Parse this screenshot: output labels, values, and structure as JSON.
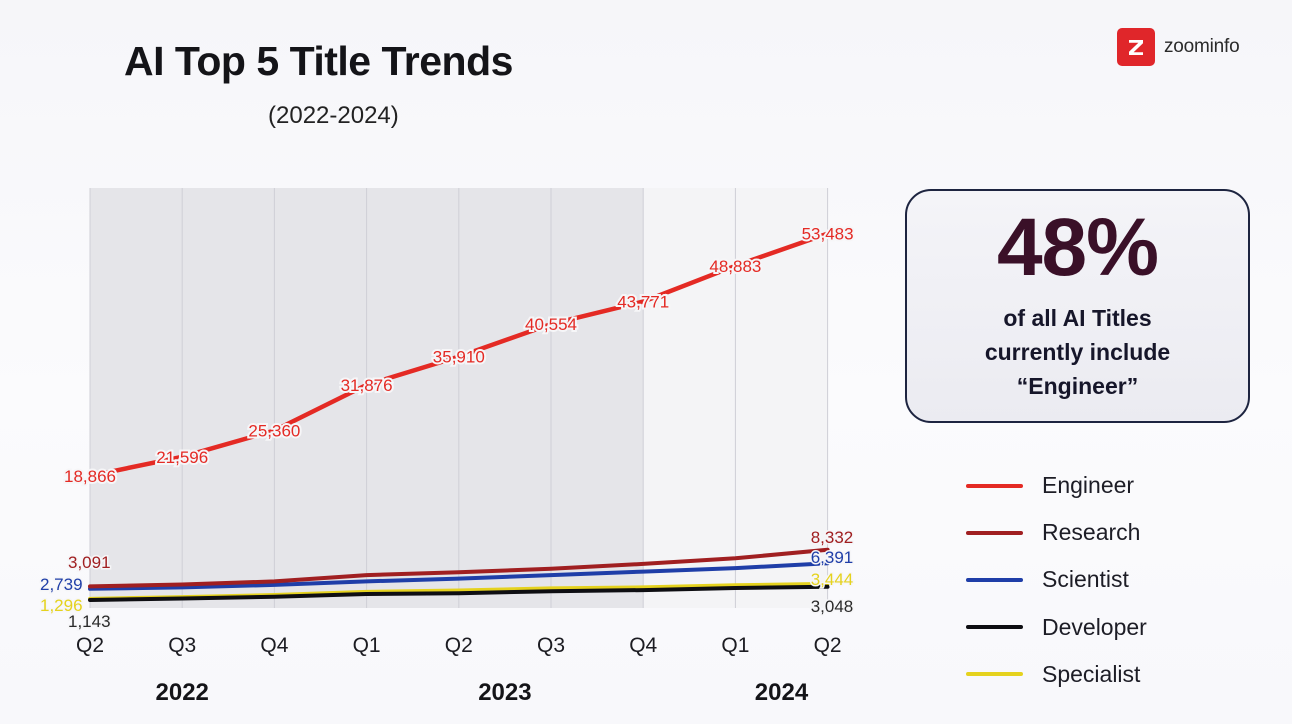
{
  "brand": {
    "name": "zoominfo",
    "icon": "zoominfo-logo-icon",
    "color": "#e0262a"
  },
  "chart_data": {
    "type": "line",
    "title": "AI Top 5 Title Trends",
    "subtitle": "(2022-2024)",
    "xlabel": "",
    "ylabel": "",
    "categories": [
      "Q2",
      "Q3",
      "Q4",
      "Q1",
      "Q2",
      "Q3",
      "Q4",
      "Q1",
      "Q2"
    ],
    "years": [
      {
        "label": "2022",
        "from": 0,
        "to": 2
      },
      {
        "label": "2023",
        "from": 3,
        "to": 6
      },
      {
        "label": "2024",
        "from": 7,
        "to": 8
      }
    ],
    "shaded_range": [
      0,
      6
    ],
    "grid": true,
    "ylim": [
      0,
      60000
    ],
    "series": [
      {
        "name": "Engineer",
        "color": "#e42a24",
        "values": [
          18866,
          21596,
          25360,
          31876,
          35910,
          40554,
          43771,
          48883,
          53483
        ],
        "labels": [
          "18,866",
          "21,596",
          "25,360",
          "31,876",
          "35,910",
          "40,554",
          "43,771",
          "48,883",
          "53,483"
        ]
      },
      {
        "name": "Research",
        "color": "#a01f21",
        "values": [
          3091,
          3350,
          3800,
          4700,
          5100,
          5600,
          6300,
          7100,
          8332
        ],
        "labels": [
          "3,091",
          "",
          "",
          "",
          "",
          "",
          "",
          "",
          "8,332"
        ]
      },
      {
        "name": "Scientist",
        "color": "#1f3ea8",
        "values": [
          2739,
          2950,
          3300,
          3800,
          4200,
          4700,
          5200,
          5700,
          6391
        ],
        "labels": [
          "2,739",
          "",
          "",
          "",
          "",
          "",
          "",
          "",
          "6,391"
        ]
      },
      {
        "name": "Developer",
        "color": "#0e0e12",
        "values": [
          1143,
          1350,
          1600,
          2000,
          2100,
          2400,
          2550,
          2850,
          3048
        ],
        "labels": [
          "1,143",
          "",
          "",
          "",
          "",
          "",
          "",
          "",
          "3,048"
        ]
      },
      {
        "name": "Specialist",
        "color": "#e5d21e",
        "values": [
          1296,
          1550,
          1850,
          2300,
          2500,
          2800,
          2950,
          3250,
          3444
        ],
        "labels": [
          "1,296",
          "",
          "",
          "",
          "",
          "",
          "",
          "",
          "3,444"
        ]
      }
    ],
    "legend_position": "right"
  },
  "callout": {
    "value": "48%",
    "line1": "of all AI Titles",
    "line2": "currently include",
    "line3": "“Engineer”"
  }
}
